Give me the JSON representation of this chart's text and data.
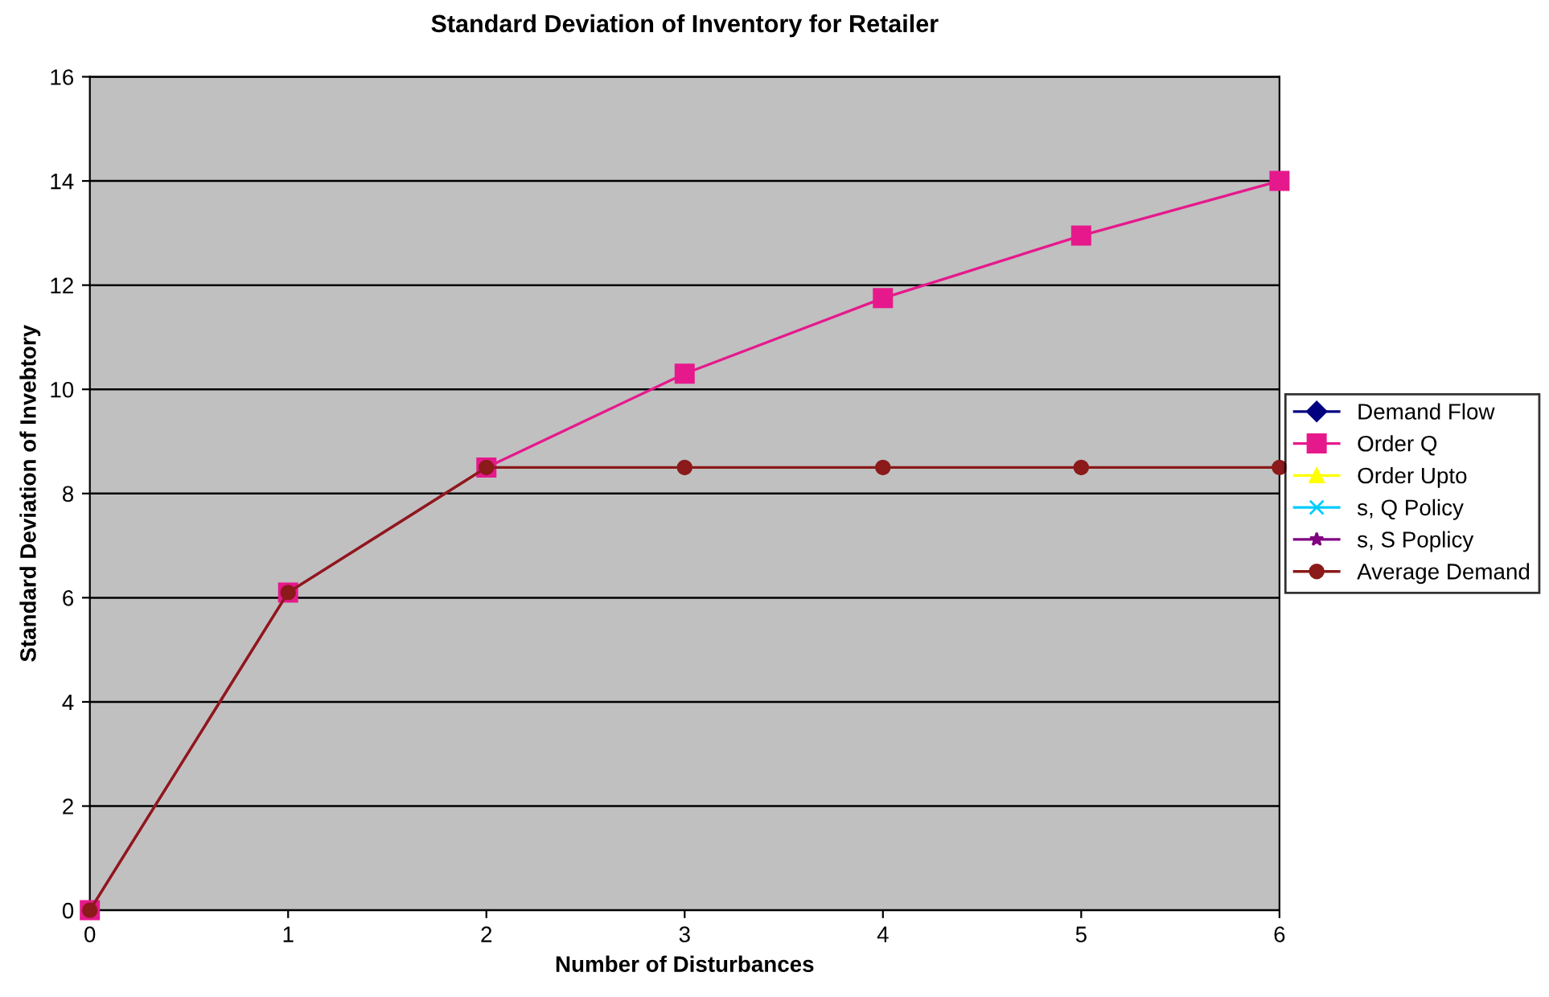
{
  "chart_data": {
    "type": "line",
    "title": "Standard Deviation of Inventory for Retailer",
    "xlabel": "Number of Disturbances",
    "ylabel": "Standard Deviation of Invebtory",
    "x": [
      0,
      1,
      2,
      3,
      4,
      5,
      6
    ],
    "series": [
      {
        "name": "Demand Flow",
        "color": "#000080",
        "marker": "diamond",
        "values": [
          null,
          null,
          null,
          null,
          null,
          null,
          null
        ]
      },
      {
        "name": "Order Q",
        "color": "#e6198c",
        "marker": "square",
        "values": [
          0,
          6.1,
          8.5,
          10.3,
          11.75,
          12.95,
          14.0
        ]
      },
      {
        "name": "Order Upto",
        "color": "#ffff00",
        "marker": "triangle",
        "values": [
          null,
          null,
          null,
          null,
          null,
          null,
          null
        ]
      },
      {
        "name": "s, Q Policy",
        "color": "#00ccff",
        "marker": "cross",
        "values": [
          null,
          null,
          null,
          null,
          null,
          null,
          null
        ]
      },
      {
        "name": "s, S Poplicy",
        "color": "#800080",
        "marker": "star",
        "values": [
          null,
          null,
          null,
          null,
          null,
          null,
          null
        ]
      },
      {
        "name": "Average Demand",
        "color": "#8b1a1a",
        "marker": "circle",
        "values": [
          0,
          6.1,
          8.5,
          8.5,
          8.5,
          8.5,
          8.5
        ]
      }
    ],
    "xlim": [
      0,
      6
    ],
    "xticks": [
      0,
      1,
      2,
      3,
      4,
      5,
      6
    ],
    "ylim": [
      0,
      16
    ],
    "yticks": [
      0,
      2,
      4,
      6,
      8,
      10,
      12,
      14,
      16
    ],
    "grid": "y",
    "legend": "right",
    "line_style": "solid"
  }
}
